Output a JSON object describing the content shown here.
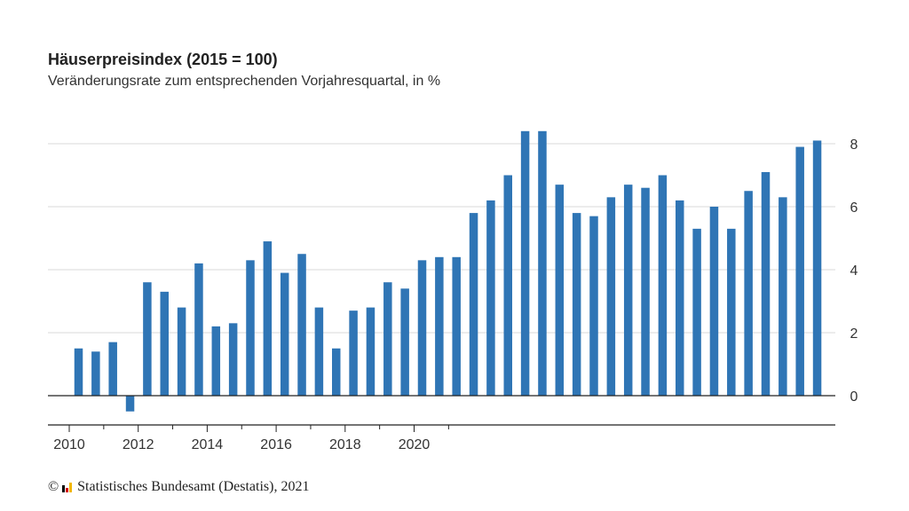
{
  "header": {
    "title": "Häuserpreisindex (2015 = 100)",
    "subtitle": "Veränderungsrate zum entsprechenden Vorjahresquartal, in %"
  },
  "footer": {
    "copyright_symbol": "©",
    "source": "Statistisches Bundesamt (Destatis), 2021"
  },
  "colors": {
    "bar": "#2f75b5",
    "grid": "#d9d9d9",
    "axis": "#222222",
    "logo": [
      "#000000",
      "#d40000",
      "#f2b800"
    ]
  },
  "chart_data": {
    "type": "bar",
    "title": "Häuserpreisindex (2015 = 100)",
    "subtitle": "Veränderungsrate zum entsprechenden Vorjahresquartal, in %",
    "xlabel": "",
    "ylabel": "",
    "categories": [
      "2010-Q1",
      "2010-Q2",
      "2010-Q3",
      "2010-Q4",
      "2011-Q1",
      "2011-Q2",
      "2011-Q3",
      "2011-Q4",
      "2012-Q1",
      "2012-Q2",
      "2012-Q3",
      "2012-Q4",
      "2013-Q1",
      "2013-Q2",
      "2013-Q3",
      "2013-Q4",
      "2014-Q1",
      "2014-Q2",
      "2014-Q3",
      "2014-Q4",
      "2015-Q1",
      "2015-Q2",
      "2015-Q3",
      "2015-Q4",
      "2016-Q1",
      "2016-Q2",
      "2016-Q3",
      "2016-Q4",
      "2017-Q1",
      "2017-Q2",
      "2017-Q3",
      "2017-Q4",
      "2018-Q1",
      "2018-Q2",
      "2018-Q3",
      "2018-Q4",
      "2019-Q1",
      "2019-Q2",
      "2019-Q3",
      "2019-Q4",
      "2020-Q1",
      "2020-Q2",
      "2020-Q3",
      "2020-Q4"
    ],
    "values": [
      1.5,
      1.4,
      1.7,
      -0.5,
      3.6,
      3.3,
      2.8,
      4.2,
      2.2,
      2.3,
      4.3,
      4.9,
      3.9,
      4.5,
      2.8,
      1.5,
      2.7,
      2.8,
      3.6,
      3.4,
      4.3,
      4.4,
      4.4,
      5.8,
      6.2,
      7.0,
      8.4,
      8.4,
      6.7,
      5.8,
      5.7,
      6.3,
      6.7,
      6.6,
      7.0,
      6.2,
      5.3,
      6.0,
      5.3,
      6.5,
      7.1,
      6.3,
      7.9,
      8.1
    ],
    "ylim": [
      -1,
      9
    ],
    "y_ticks": [
      0,
      2,
      4,
      6,
      8
    ],
    "x_tick_labels": [
      "2010",
      "2012",
      "2014",
      "2016",
      "2018",
      "2020"
    ],
    "y_axis_position": "right",
    "grid": true,
    "legend": "none"
  }
}
